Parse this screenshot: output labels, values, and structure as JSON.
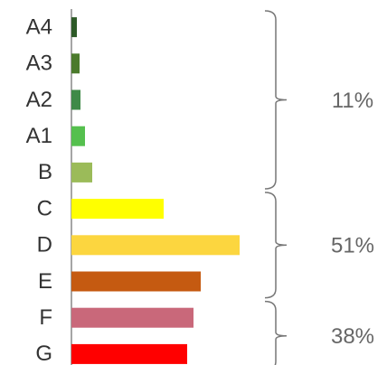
{
  "chart_data": {
    "type": "bar",
    "orientation": "horizontal",
    "categories": [
      "A4",
      "A3",
      "A2",
      "A1",
      "B",
      "C",
      "D",
      "E",
      "F",
      "G"
    ],
    "values": [
      6,
      9,
      10,
      15,
      23,
      102,
      186,
      143,
      135,
      128
    ],
    "colors": [
      "#2d5a27",
      "#4b7a2c",
      "#3f8a48",
      "#55c04e",
      "#9bbb59",
      "#ffff00",
      "#fcd63f",
      "#c55a11",
      "#c9687a",
      "#ff0000"
    ],
    "xlim": [
      0,
      200
    ],
    "annotations": [
      "11%",
      "51%",
      "38%"
    ]
  }
}
